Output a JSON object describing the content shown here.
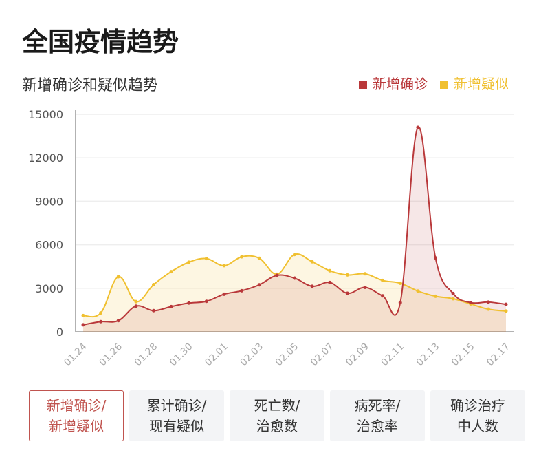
{
  "header": {
    "title": "全国疫情趋势"
  },
  "chart_data": {
    "type": "area",
    "title": "新增确诊和疑似趋势",
    "legend_position": "top-right",
    "grid": true,
    "ylim": [
      0,
      15000
    ],
    "yticks": [
      0,
      3000,
      6000,
      9000,
      12000,
      15000
    ],
    "categories": [
      "01.24",
      "01.25",
      "01.26",
      "01.27",
      "01.28",
      "01.29",
      "01.30",
      "01.31",
      "02.01",
      "02.02",
      "02.03",
      "02.04",
      "02.05",
      "02.06",
      "02.07",
      "02.08",
      "02.09",
      "02.10",
      "02.11",
      "02.12",
      "02.13",
      "02.14",
      "02.15",
      "02.16",
      "02.17"
    ],
    "xtick_labels": [
      "01.24",
      "01.26",
      "01.28",
      "01.30",
      "02.01",
      "02.03",
      "02.05",
      "02.07",
      "02.09",
      "02.11",
      "02.13",
      "02.15",
      "02.17"
    ],
    "series": [
      {
        "name": "新增确诊",
        "color": "#b9383a",
        "values": [
          480,
          700,
          770,
          1770,
          1460,
          1740,
          1980,
          2100,
          2590,
          2830,
          3240,
          3890,
          3700,
          3140,
          3400,
          2660,
          3060,
          2480,
          2010,
          14100,
          5090,
          2640,
          2010,
          2050,
          1890
        ]
      },
      {
        "name": "新增疑似",
        "color": "#f0c030",
        "values": [
          1120,
          1300,
          3800,
          2080,
          3250,
          4150,
          4800,
          5050,
          4560,
          5170,
          5070,
          3970,
          5330,
          4830,
          4210,
          3920,
          4000,
          3540,
          3350,
          2810,
          2450,
          2280,
          1920,
          1560,
          1430
        ]
      }
    ]
  },
  "tabs": [
    {
      "line1": "新增确诊/",
      "line2": "新增疑似",
      "active": true
    },
    {
      "line1": "累计确诊/",
      "line2": "现有疑似",
      "active": false
    },
    {
      "line1": "死亡数/",
      "line2": "治愈数",
      "active": false
    },
    {
      "line1": "病死率/",
      "line2": "治愈率",
      "active": false
    },
    {
      "line1": "确诊治疗",
      "line2": "中人数",
      "active": false
    }
  ]
}
